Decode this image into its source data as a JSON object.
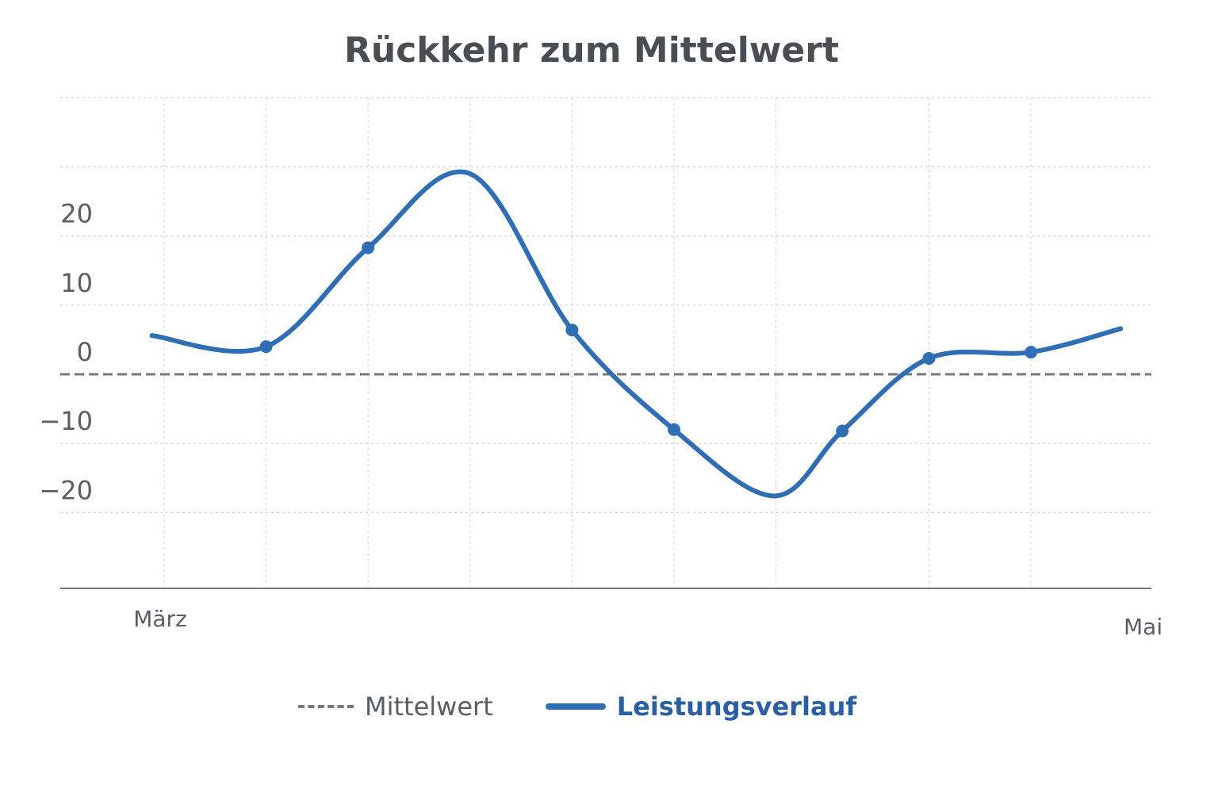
{
  "chart_data": {
    "type": "line",
    "title": "Rückkehr zum Mittelwert",
    "xlabel": "",
    "ylabel": "",
    "x_tick_labels": [
      {
        "label": "März",
        "x": 0
      },
      {
        "label": "Mai",
        "x": 9.6
      }
    ],
    "y_ticks": [
      20,
      10,
      0,
      -10,
      -20
    ],
    "ylim": [
      -31,
      40
    ],
    "grid": true,
    "legend": "bottom",
    "series": [
      {
        "name": "Leistungsverlauf",
        "color": "#2f6db5",
        "points": [
          {
            "x": -0.12,
            "y": 5.6,
            "marker": false
          },
          {
            "x": 1,
            "y": 4.0,
            "marker": true
          },
          {
            "x": 2,
            "y": 18.3,
            "marker": true
          },
          {
            "x": 3,
            "y": 29.0,
            "marker": false
          },
          {
            "x": 4,
            "y": 6.4,
            "marker": true
          },
          {
            "x": 5,
            "y": -8.0,
            "marker": true
          },
          {
            "x": 5.98,
            "y": -17.6,
            "marker": false
          },
          {
            "x": 6.65,
            "y": -8.2,
            "marker": true
          },
          {
            "x": 7.5,
            "y": 2.3,
            "marker": true
          },
          {
            "x": 8.5,
            "y": 3.2,
            "marker": true
          },
          {
            "x": 9.38,
            "y": 6.6,
            "marker": false
          }
        ]
      },
      {
        "name": "Mittelwert",
        "color": "#777777",
        "style": "dashed",
        "value": 0
      }
    ]
  }
}
